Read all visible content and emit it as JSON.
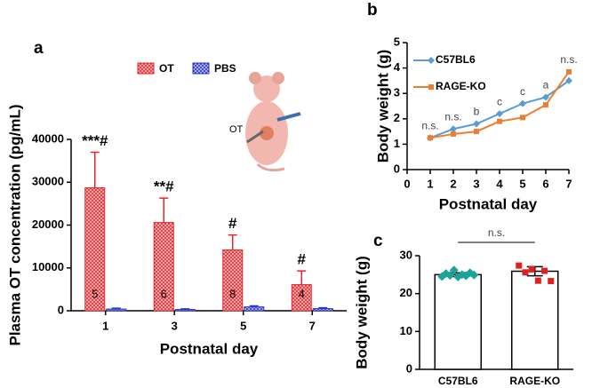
{
  "chart_data": [
    {
      "type": "bar",
      "label": "a",
      "xlabel": "Postnatal day",
      "ylabel": "Plasma OT concentration (pg/mL)",
      "categories": [
        "1",
        "3",
        "5",
        "7"
      ],
      "series": [
        {
          "name": "OT",
          "color": "#e8262a",
          "values": [
            28700,
            20600,
            14200,
            6100
          ],
          "errors": [
            8300,
            5700,
            3500,
            3200
          ]
        },
        {
          "name": "PBS",
          "color": "#2a36c8",
          "values": [
            400,
            300,
            900,
            500
          ],
          "errors": [
            200,
            150,
            250,
            200
          ]
        }
      ],
      "bar_labels": [
        "5",
        "6",
        "8",
        "4"
      ],
      "annotations": [
        "***#",
        "**#",
        "#",
        "#"
      ],
      "inset_label": "OT",
      "ylim": [
        0,
        40000
      ],
      "yticks": [
        0,
        10000,
        20000,
        30000,
        40000
      ]
    },
    {
      "type": "line",
      "label": "b",
      "xlabel": "Postnatal day",
      "ylabel": "Body weight (g)",
      "x": [
        1,
        2,
        3,
        4,
        5,
        6,
        7
      ],
      "series": [
        {
          "name": "C57BL6",
          "color": "#5b9bd5",
          "values": [
            1.25,
            1.6,
            1.8,
            2.2,
            2.6,
            2.85,
            3.5
          ]
        },
        {
          "name": "RAGE-KO",
          "color": "#ed7d31",
          "values": [
            1.25,
            1.4,
            1.5,
            1.9,
            2.05,
            2.55,
            3.85
          ]
        }
      ],
      "annotations": [
        "n.s.",
        "n.s.",
        "b",
        "c",
        "c",
        "a",
        "n.s."
      ],
      "xlim": [
        0,
        7
      ],
      "xticks": [
        0,
        1,
        2,
        3,
        4,
        5,
        6,
        7
      ],
      "ylim": [
        0,
        5
      ],
      "yticks": [
        0,
        1,
        2,
        3,
        4,
        5
      ]
    },
    {
      "type": "bar",
      "label": "c",
      "ylabel": "Body weight (g)",
      "categories": [
        "C57BL6",
        "RAGE-KO"
      ],
      "values": [
        25.0,
        25.9
      ],
      "errors": [
        0.5,
        1.2
      ],
      "points": [
        [
          24.5,
          25.3,
          24.8,
          26.2,
          24.4,
          25.0,
          24.7,
          25.5,
          24.9
        ],
        [
          27.4,
          25.6,
          26.4,
          23.4,
          26.0,
          23.3
        ]
      ],
      "point_colors": [
        "#1aa39a",
        "#e02020"
      ],
      "significance": "n.s.",
      "ylim": [
        0,
        30
      ],
      "yticks": [
        0,
        10,
        20,
        30
      ]
    }
  ]
}
